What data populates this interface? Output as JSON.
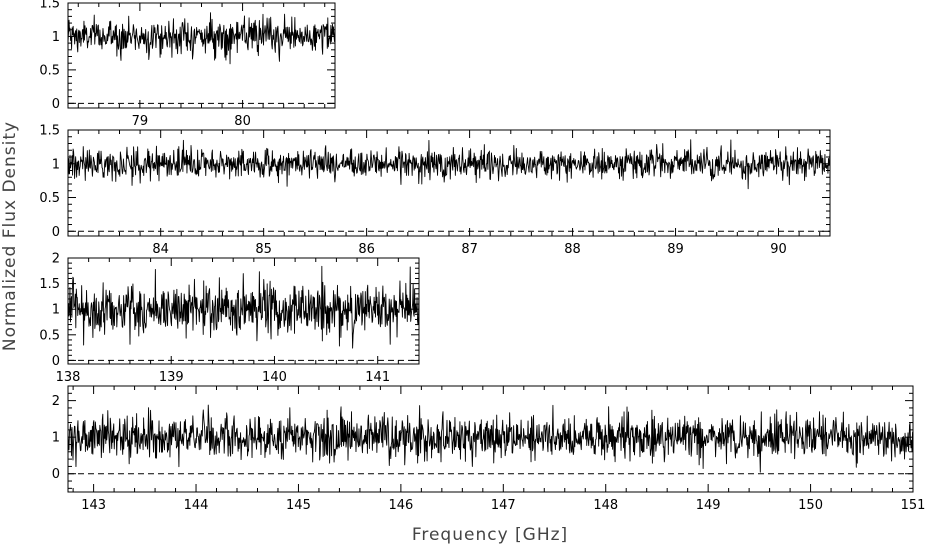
{
  "chart_data": {
    "type": "line",
    "xlabel": "Frequency [GHz]",
    "ylabel": "Normalized Flux Density",
    "colors": {
      "line": "#000000",
      "frame": "#000000"
    },
    "panels": [
      {
        "name": "panel-1",
        "xlim": [
          78.3,
          80.9
        ],
        "ylim": [
          -0.07,
          1.5
        ],
        "x_ticks": [
          79,
          80
        ],
        "y_ticks": [
          0,
          0.5,
          1,
          1.5
        ],
        "y_tick_labels": [
          "0",
          "0.5",
          "1",
          "1.5"
        ],
        "zero_line": 0,
        "series": [
          {
            "mean": 1.0,
            "noise_rms": 0.13,
            "points": 520
          }
        ]
      },
      {
        "name": "panel-2",
        "xlim": [
          83.1,
          90.5
        ],
        "ylim": [
          -0.07,
          1.5
        ],
        "x_ticks": [
          84,
          85,
          86,
          87,
          88,
          89,
          90
        ],
        "y_ticks": [
          0,
          0.5,
          1,
          1.5
        ],
        "y_tick_labels": [
          "0",
          "0.5",
          "1",
          "1.5"
        ],
        "zero_line": 0,
        "series": [
          {
            "mean": 1.0,
            "noise_rms": 0.11,
            "points": 1500
          }
        ]
      },
      {
        "name": "panel-3",
        "xlim": [
          138.0,
          141.4
        ],
        "ylim": [
          -0.07,
          2.0
        ],
        "x_ticks": [
          138,
          139,
          140,
          141
        ],
        "y_ticks": [
          0,
          0.5,
          1,
          1.5,
          2
        ],
        "y_tick_labels": [
          "0",
          "0.5",
          "1",
          "1.5",
          "2"
        ],
        "zero_line": 0,
        "series": [
          {
            "mean": 1.0,
            "noise_rms": 0.26,
            "points": 720
          }
        ]
      },
      {
        "name": "panel-4",
        "xlim": [
          142.75,
          151.0
        ],
        "ylim": [
          -0.5,
          2.4
        ],
        "x_ticks": [
          143,
          144,
          145,
          146,
          147,
          148,
          149,
          150,
          151
        ],
        "y_ticks": [
          0,
          1,
          2
        ],
        "y_tick_labels": [
          "0",
          "1",
          "2"
        ],
        "zero_line": 0,
        "series": [
          {
            "mean": 1.0,
            "noise_rms": 0.3,
            "points": 1700
          }
        ]
      }
    ]
  }
}
